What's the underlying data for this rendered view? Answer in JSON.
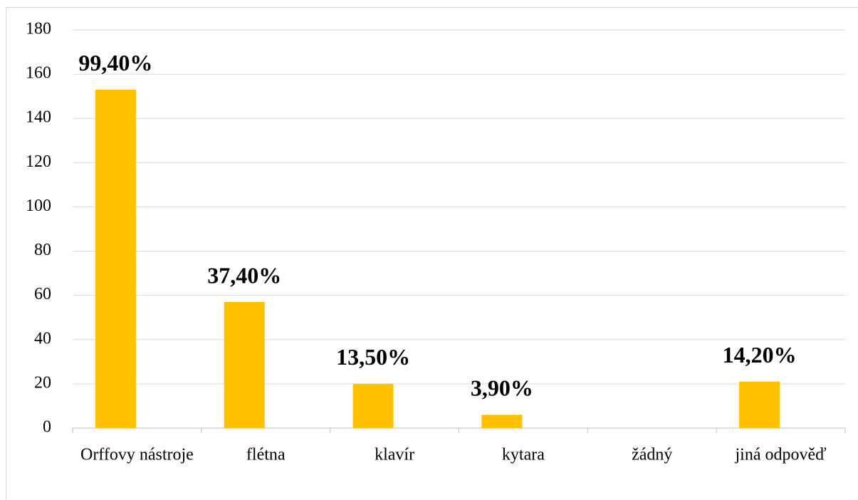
{
  "chart_data": {
    "type": "bar",
    "categories": [
      "Orffovy nástroje",
      "flétna",
      "klavír",
      "kytara",
      "žádný",
      "jiná odpověď"
    ],
    "values": [
      153,
      57,
      20,
      6,
      0,
      21
    ],
    "annotations": [
      "99,40%",
      "37,40%",
      "13,50%",
      "3,90%",
      null,
      "14,20%"
    ],
    "color": "#ffc000",
    "ylim": [
      0,
      180
    ],
    "yticks": [
      0,
      20,
      40,
      60,
      80,
      100,
      120,
      140,
      160,
      180
    ],
    "grid": true
  }
}
